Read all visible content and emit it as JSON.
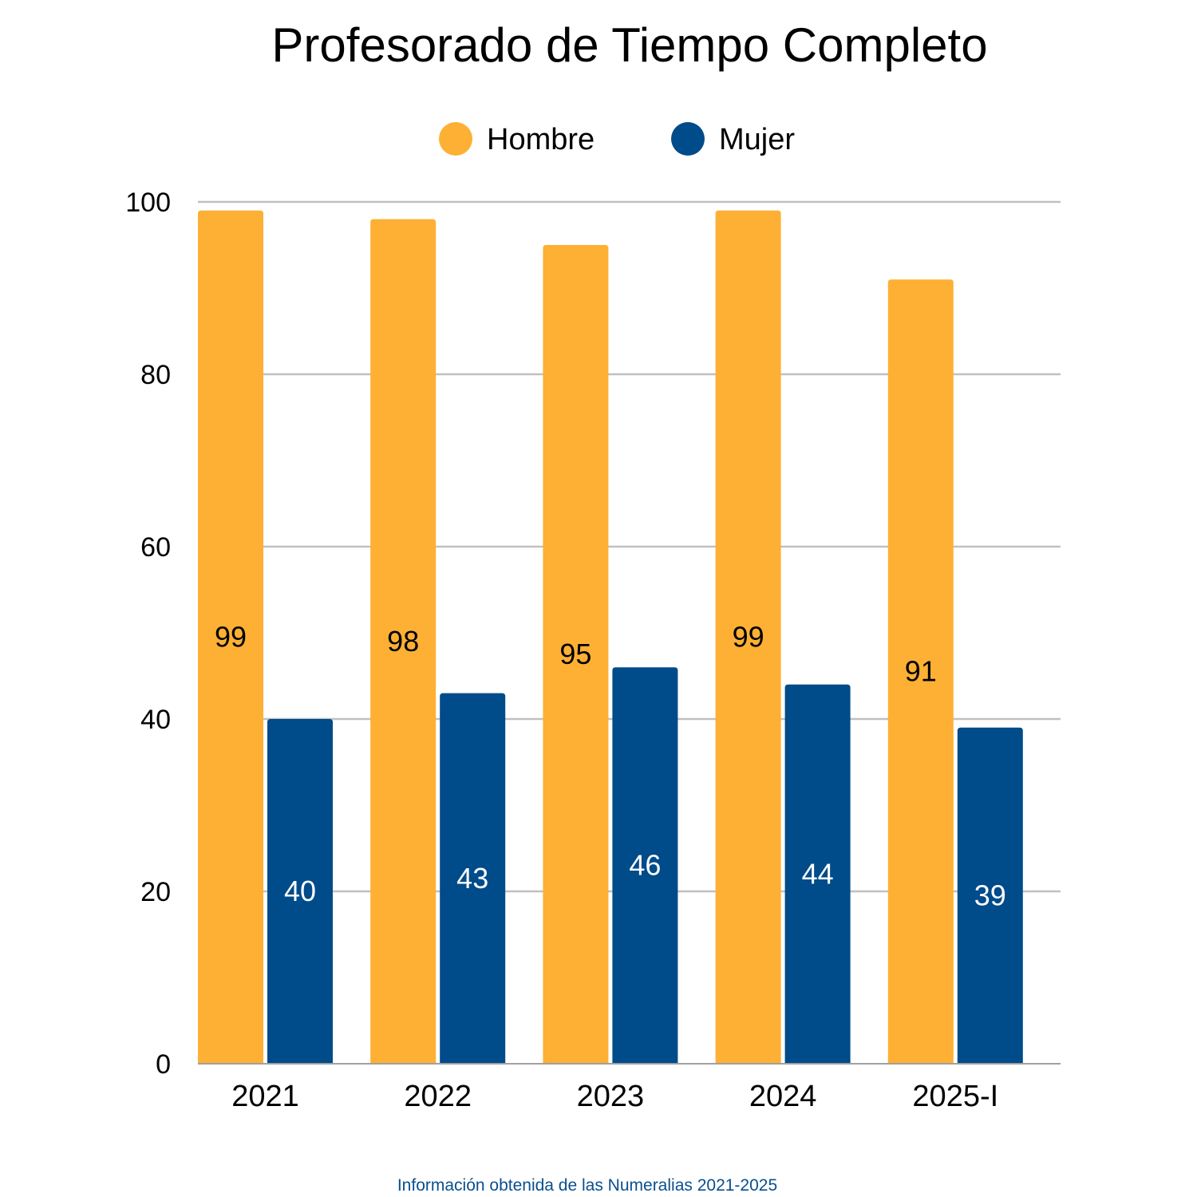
{
  "chart_data": {
    "type": "bar",
    "title": "Profesorado de Tiempo Completo",
    "categories": [
      "2021",
      "2022",
      "2023",
      "2024",
      "2025-I"
    ],
    "series": [
      {
        "name": "Hombre",
        "values": [
          99,
          98,
          95,
          99,
          91
        ],
        "color": "#fdb034",
        "label_color": "#000000"
      },
      {
        "name": "Mujer",
        "values": [
          40,
          43,
          46,
          44,
          39
        ],
        "color": "#004b8a",
        "label_color": "#ffffff"
      }
    ],
    "ylim": [
      0,
      100
    ],
    "yticks": [
      0,
      20,
      40,
      60,
      80,
      100
    ],
    "grid": true,
    "legend_position": "top-center",
    "data_labels": true
  },
  "footer": {
    "note": "Información obtenida de las Numeralias 2021-2025"
  }
}
